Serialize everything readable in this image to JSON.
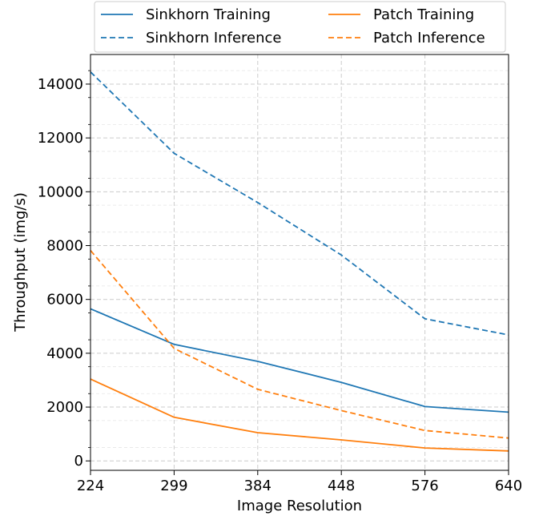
{
  "chart_data": {
    "type": "line",
    "xlabel": "Image Resolution",
    "ylabel": "Throughput (img/s)",
    "x": [
      "224",
      "299",
      "384",
      "448",
      "576",
      "640"
    ],
    "ylim": [
      -350,
      15100
    ],
    "yticks": [
      0,
      2000,
      4000,
      6000,
      8000,
      10000,
      12000,
      14000
    ],
    "grid": true,
    "legend_position": "top-center",
    "series": [
      {
        "name": "Sinkhorn Training",
        "color": "#1f77b4",
        "style": "solid",
        "values": [
          5650,
          4330,
          3700,
          2920,
          2020,
          1810
        ]
      },
      {
        "name": "Sinkhorn Inference",
        "color": "#1f77b4",
        "style": "dashed",
        "values": [
          14450,
          11430,
          9600,
          7650,
          5280,
          4680
        ]
      },
      {
        "name": "Patch Training",
        "color": "#ff7f0e",
        "style": "solid",
        "values": [
          3040,
          1620,
          1050,
          780,
          480,
          370
        ]
      },
      {
        "name": "Patch Inference",
        "color": "#ff7f0e",
        "style": "dashed",
        "values": [
          7820,
          4180,
          2660,
          1870,
          1130,
          850
        ]
      }
    ]
  }
}
